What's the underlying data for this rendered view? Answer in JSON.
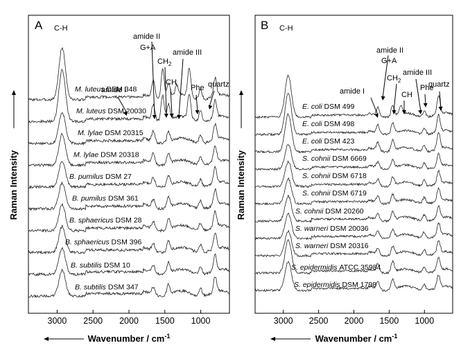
{
  "chart_data": [
    {
      "type": "line",
      "panel": "A",
      "xlabel": "Wavenumber / cm",
      "xlabel_sup": "-1",
      "ylabel": "Raman Intensity",
      "xlim": [
        3400,
        600
      ],
      "x_ticks": [
        3000,
        2500,
        2000,
        1500,
        1000
      ],
      "grid": false,
      "annotations": [
        {
          "label": "C-H",
          "x": 2930
        },
        {
          "label": "amide I",
          "x": 1660
        },
        {
          "label": "amide II",
          "x": 1575
        },
        {
          "label": "G+A",
          "x": 1575
        },
        {
          "label": "CH",
          "sub": "2",
          "x": 1450
        },
        {
          "label": "CH",
          "x": 1335
        },
        {
          "label": "amide III",
          "x": 1240
        },
        {
          "label": "Phe",
          "x": 1003
        },
        {
          "label": "quartz",
          "x": 800
        }
      ],
      "series": [
        {
          "species": "M. luteus",
          "strain": "DSM 348",
          "peaks": [
            [
              2930,
              1.0
            ],
            [
              1660,
              0.35
            ],
            [
              1530,
              0.6
            ],
            [
              1450,
              0.3
            ],
            [
              1335,
              0.2
            ],
            [
              1160,
              0.55
            ],
            [
              1003,
              0.2
            ],
            [
              800,
              0.35
            ]
          ]
        },
        {
          "species": "M. luteus",
          "strain": "DSM 20030",
          "peaks": [
            [
              2930,
              1.0
            ],
            [
              1660,
              0.3
            ],
            [
              1530,
              0.5
            ],
            [
              1450,
              0.3
            ],
            [
              1160,
              0.45
            ],
            [
              1003,
              0.2
            ],
            [
              800,
              0.35
            ]
          ]
        },
        {
          "species": "M. lylae",
          "strain": "DSM 20315",
          "peaks": [
            [
              2930,
              0.6
            ],
            [
              1660,
              0.2
            ],
            [
              1450,
              0.2
            ],
            [
              1003,
              0.15
            ],
            [
              800,
              0.3
            ]
          ]
        },
        {
          "species": "M. lylae",
          "strain": "DSM 20318",
          "peaks": [
            [
              2930,
              0.6
            ],
            [
              1660,
              0.2
            ],
            [
              1450,
              0.2
            ],
            [
              1003,
              0.15
            ],
            [
              800,
              0.3
            ]
          ]
        },
        {
          "species": "B. pumilus",
          "strain": "DSM 27",
          "peaks": [
            [
              2930,
              0.5
            ],
            [
              1660,
              0.15
            ],
            [
              1450,
              0.2
            ],
            [
              1003,
              0.15
            ],
            [
              800,
              0.3
            ]
          ]
        },
        {
          "species": "B. pumilus",
          "strain": "DSM 361",
          "peaks": [
            [
              2930,
              0.5
            ],
            [
              1660,
              0.15
            ],
            [
              1450,
              0.2
            ],
            [
              1003,
              0.15
            ],
            [
              800,
              0.3
            ]
          ]
        },
        {
          "species": "B. sphaericus",
          "strain": "DSM 28",
          "peaks": [
            [
              2930,
              0.5
            ],
            [
              1660,
              0.15
            ],
            [
              1450,
              0.2
            ],
            [
              1003,
              0.15
            ],
            [
              800,
              0.3
            ]
          ]
        },
        {
          "species": "B. sphaericus",
          "strain": "DSM 396",
          "peaks": [
            [
              2930,
              0.5
            ],
            [
              1660,
              0.15
            ],
            [
              1450,
              0.2
            ],
            [
              1003,
              0.15
            ],
            [
              800,
              0.3
            ]
          ]
        },
        {
          "species": "B. subtilis",
          "strain": "DSM 10",
          "peaks": [
            [
              2930,
              0.5
            ],
            [
              1660,
              0.15
            ],
            [
              1450,
              0.2
            ],
            [
              1003,
              0.15
            ],
            [
              800,
              0.3
            ]
          ]
        },
        {
          "species": "B. subtilis",
          "strain": "DSM 347",
          "peaks": [
            [
              2930,
              0.5
            ],
            [
              1660,
              0.15
            ],
            [
              1450,
              0.2
            ],
            [
              1003,
              0.15
            ],
            [
              800,
              0.3
            ]
          ]
        }
      ]
    },
    {
      "type": "line",
      "panel": "B",
      "xlabel": "Wavenumber / cm",
      "xlabel_sup": "-1",
      "ylabel": "Raman Intensity",
      "xlim": [
        3400,
        600
      ],
      "x_ticks": [
        3000,
        2500,
        2000,
        1500,
        1000
      ],
      "grid": false,
      "annotations": [
        {
          "label": "C-H",
          "x": 2930
        },
        {
          "label": "amide I",
          "x": 1660
        },
        {
          "label": "amide II",
          "x": 1575
        },
        {
          "label": "G+A",
          "x": 1575
        },
        {
          "label": "CH",
          "sub": "2",
          "x": 1450
        },
        {
          "label": "CH",
          "x": 1335
        },
        {
          "label": "amide III",
          "x": 1240
        },
        {
          "label": "Phe",
          "x": 1003
        },
        {
          "label": "quartz",
          "x": 800
        }
      ],
      "series": [
        {
          "species": "E. coli",
          "strain": "DSM 499",
          "peaks": [
            [
              2930,
              1.0
            ],
            [
              1660,
              0.2
            ],
            [
              1450,
              0.25
            ],
            [
              1335,
              0.2
            ],
            [
              1003,
              0.15
            ],
            [
              800,
              0.45
            ]
          ]
        },
        {
          "species": "E. coli",
          "strain": "DSM 498",
          "peaks": [
            [
              2930,
              1.0
            ],
            [
              1660,
              0.2
            ],
            [
              1450,
              0.25
            ],
            [
              1003,
              0.15
            ],
            [
              800,
              0.4
            ]
          ]
        },
        {
          "species": "E. coli",
          "strain": "DSM 423",
          "peaks": [
            [
              2930,
              0.9
            ],
            [
              1660,
              0.2
            ],
            [
              1450,
              0.25
            ],
            [
              1003,
              0.15
            ],
            [
              800,
              0.4
            ]
          ]
        },
        {
          "species": "S. cohnii",
          "strain": "DSM 6669",
          "peaks": [
            [
              2930,
              0.6
            ],
            [
              1660,
              0.15
            ],
            [
              1450,
              0.2
            ],
            [
              1003,
              0.15
            ],
            [
              800,
              0.3
            ]
          ]
        },
        {
          "species": "S. cohnii",
          "strain": "DSM 6718",
          "peaks": [
            [
              2930,
              0.6
            ],
            [
              1660,
              0.15
            ],
            [
              1450,
              0.2
            ],
            [
              1003,
              0.15
            ],
            [
              800,
              0.3
            ]
          ]
        },
        {
          "species": "S. cohnii",
          "strain": "DSM 6719",
          "peaks": [
            [
              2930,
              0.6
            ],
            [
              1660,
              0.15
            ],
            [
              1450,
              0.2
            ],
            [
              1003,
              0.15
            ],
            [
              800,
              0.3
            ]
          ]
        },
        {
          "species": "S. cohnii",
          "strain": "DSM 20260",
          "peaks": [
            [
              2930,
              0.6
            ],
            [
              1660,
              0.15
            ],
            [
              1450,
              0.2
            ],
            [
              1003,
              0.15
            ],
            [
              800,
              0.3
            ]
          ]
        },
        {
          "species": "S. warneri",
          "strain": "DSM 20036",
          "peaks": [
            [
              2930,
              0.6
            ],
            [
              1660,
              0.15
            ],
            [
              1450,
              0.2
            ],
            [
              1003,
              0.15
            ],
            [
              800,
              0.3
            ]
          ]
        },
        {
          "species": "S. warneri",
          "strain": "DSM 20316",
          "peaks": [
            [
              2930,
              0.6
            ],
            [
              1660,
              0.15
            ],
            [
              1450,
              0.2
            ],
            [
              1003,
              0.15
            ],
            [
              800,
              0.3
            ]
          ]
        },
        {
          "species": "S. epidermidis",
          "strain": "ATCC 35984",
          "peaks": [
            [
              2930,
              0.8
            ],
            [
              1660,
              0.2
            ],
            [
              1450,
              0.25
            ],
            [
              1003,
              0.15
            ],
            [
              800,
              0.3
            ]
          ]
        },
        {
          "species": "S. epidermidis",
          "strain": "DSM 1798",
          "peaks": [
            [
              2930,
              0.7
            ],
            [
              1660,
              0.2
            ],
            [
              1450,
              0.25
            ],
            [
              1003,
              0.15
            ],
            [
              800,
              0.3
            ]
          ]
        }
      ]
    }
  ]
}
